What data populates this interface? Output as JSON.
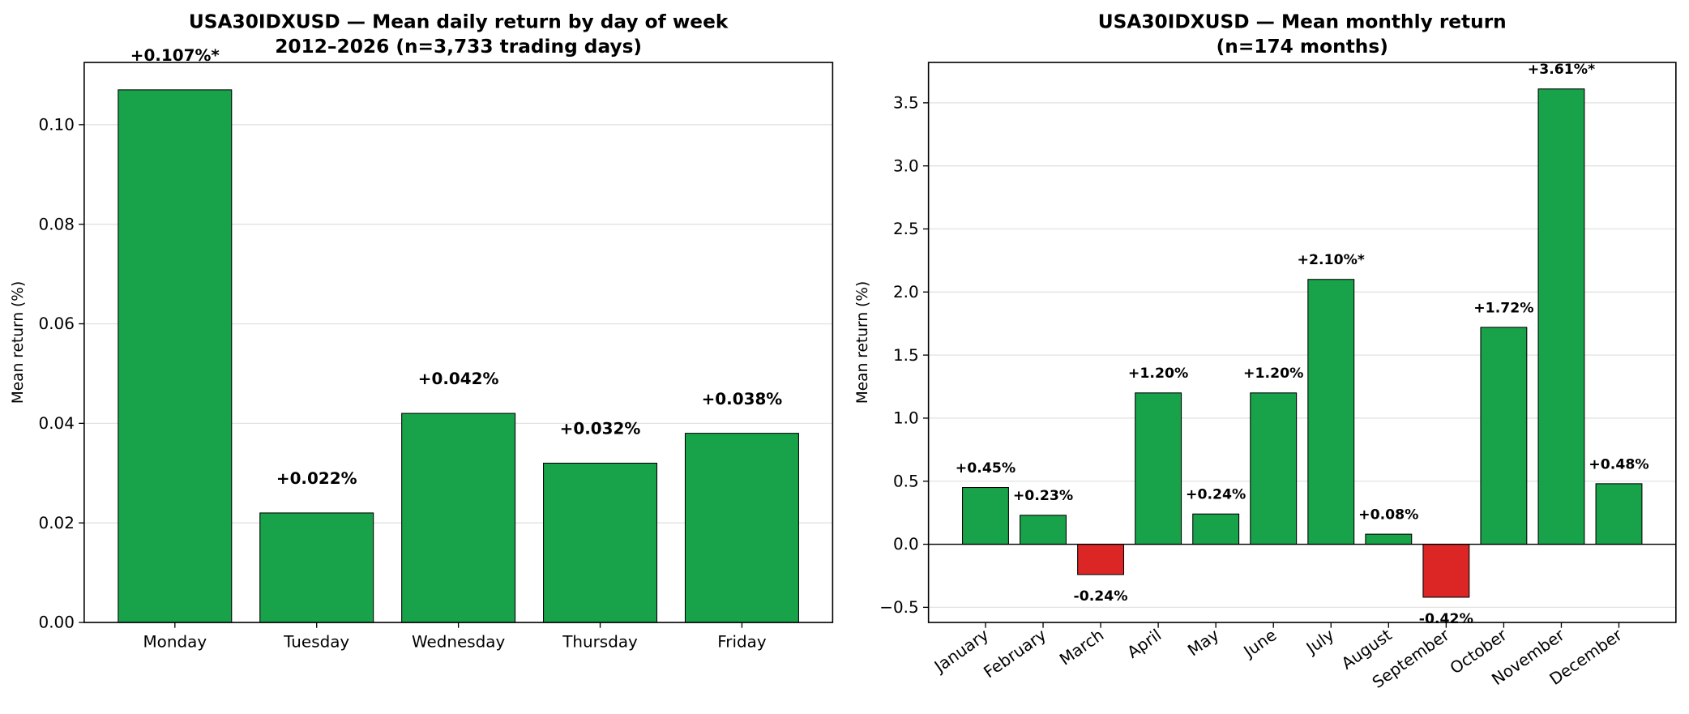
{
  "chart_data": [
    {
      "type": "bar",
      "title": "USA30IDXUSD — Mean daily return by day of week",
      "subtitle": "2012–2026 (n=3,733 trading days)",
      "y_label": "Mean return (%)",
      "categories": [
        "Monday",
        "Tuesday",
        "Wednesday",
        "Thursday",
        "Friday"
      ],
      "values": [
        0.107,
        0.022,
        0.042,
        0.032,
        0.038
      ],
      "value_labels": [
        "+0.107%*",
        "+0.022%",
        "+0.042%",
        "+0.032%",
        "+0.038%"
      ],
      "colors": [
        "#18a34a",
        "#18a34a",
        "#18a34a",
        "#18a34a",
        "#18a34a"
      ],
      "ylim": [
        0,
        0.1125
      ],
      "yticks": [
        {
          "value": 0,
          "label": "0.00"
        },
        0.02,
        0.04,
        0.06,
        0.08,
        {
          "value": 0.1,
          "label": "0.10"
        }
      ],
      "grid": true
    },
    {
      "type": "bar",
      "title": "USA30IDXUSD — Mean monthly return",
      "subtitle": "(n=174 months)",
      "y_label": "Mean return (%)",
      "categories": [
        "January",
        "February",
        "March",
        "April",
        "May",
        "June",
        "July",
        "August",
        "September",
        "October",
        "November",
        "December"
      ],
      "values": [
        0.45,
        0.23,
        -0.24,
        1.2,
        0.24,
        1.2,
        2.1,
        0.08,
        -0.42,
        1.72,
        3.61,
        0.48
      ],
      "value_labels": [
        "+0.45%",
        "+0.23%",
        "-0.24%",
        "+1.20%",
        "+0.24%",
        "+1.20%",
        "+2.10%*",
        "+0.08%",
        "-0.42%",
        "+1.72%",
        "+3.61%*",
        "+0.48%"
      ],
      "colors": [
        "#18a34a",
        "#18a34a",
        "#dc2626",
        "#18a34a",
        "#18a34a",
        "#18a34a",
        "#18a34a",
        "#18a34a",
        "#dc2626",
        "#18a34a",
        "#18a34a",
        "#18a34a"
      ],
      "ylim": [
        -0.62,
        3.82
      ],
      "yticks": [
        {
          "value": -0.5,
          "label": "−0.5"
        },
        {
          "value": 0,
          "label": "0.0"
        },
        0.5,
        {
          "value": 1,
          "label": "1.0"
        },
        1.5,
        {
          "value": 2,
          "label": "2.0"
        },
        2.5,
        {
          "value": 3,
          "label": "3.0"
        },
        3.5
      ],
      "grid": true,
      "zero_line": true,
      "rotate_labels": true
    }
  ]
}
